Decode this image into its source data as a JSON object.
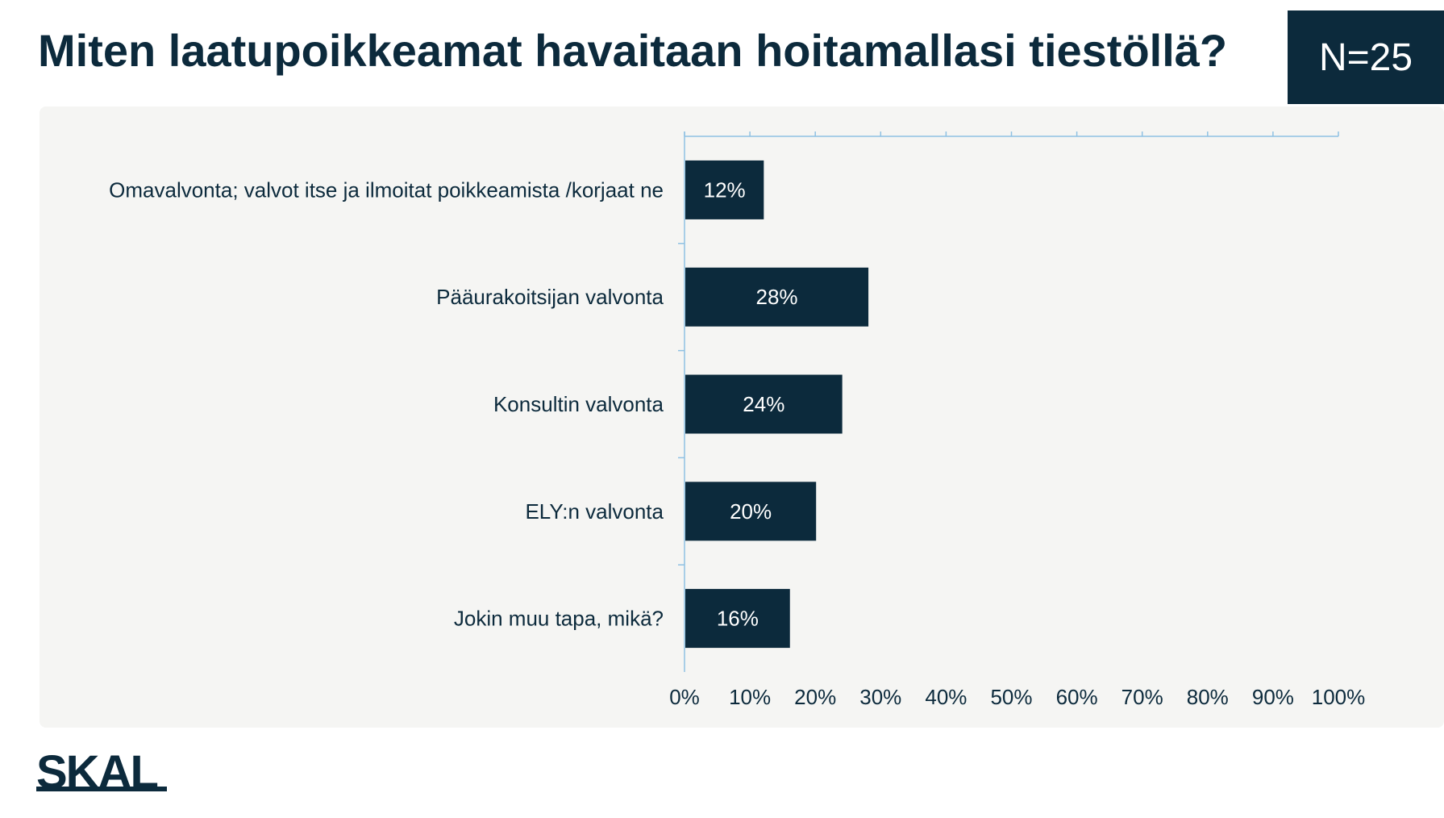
{
  "header": {
    "title": "Miten laatupoikkeamat havaitaan hoitamallasi tiestöllä?",
    "sample_size": "N=25"
  },
  "logo": {
    "text": "SKAL"
  },
  "colors": {
    "bar": "#0c2a3c",
    "axis": "#8fc1e3",
    "panel": "#f5f5f3",
    "text": "#0c2a3c"
  },
  "chart_data": {
    "type": "bar",
    "orientation": "horizontal",
    "categories": [
      "Omavalvonta; valvot itse ja ilmoitat poikkeamista /korjaat ne",
      "Pääurakoitsijan valvonta",
      "Konsultin valvonta",
      "ELY:n valvonta",
      "Jokin muu tapa, mikä?"
    ],
    "values": [
      12,
      28,
      24,
      20,
      16
    ],
    "data_labels": [
      "12%",
      "28%",
      "24%",
      "20%",
      "16%"
    ],
    "xlim": [
      0,
      100
    ],
    "x_ticks": [
      "0%",
      "10%",
      "20%",
      "30%",
      "40%",
      "50%",
      "60%",
      "70%",
      "80%",
      "90%",
      "100%"
    ],
    "grid": false,
    "legend": "none"
  }
}
